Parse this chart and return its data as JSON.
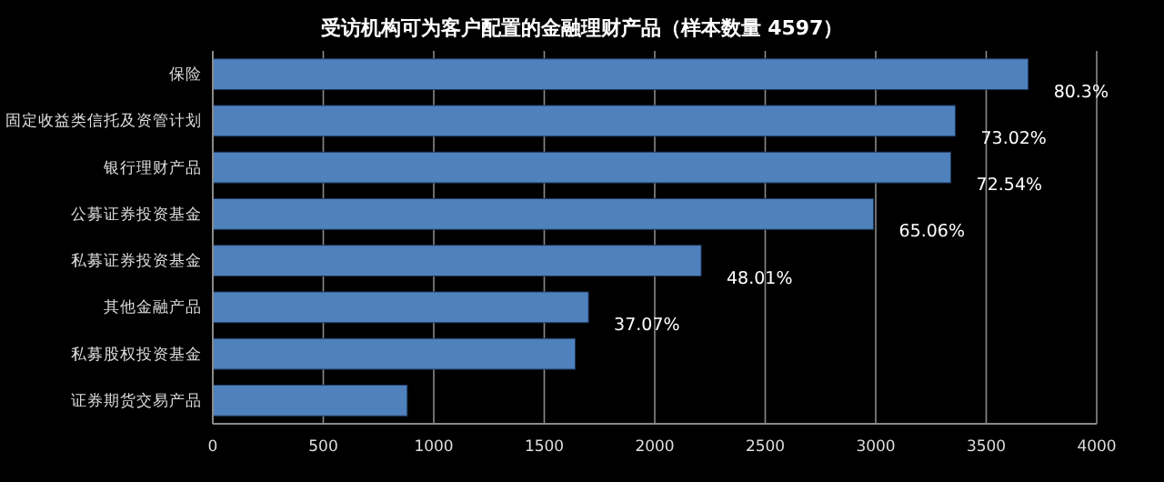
{
  "chart_data": {
    "type": "bar",
    "orientation": "horizontal",
    "title": "受访机构可为客户配置的金融理财产品（样本数量 4597）",
    "categories": [
      "保险",
      "固定收益类信托及资管计划",
      "银行理财产品",
      "公募证券投资基金",
      "私募证券投资基金",
      "其他金融产品",
      "私募股权投资基金",
      "证券期货交易产品"
    ],
    "values": [
      3690,
      3360,
      3340,
      2990,
      2210,
      1700,
      1640,
      880
    ],
    "annotations": [
      {
        "text": "80.3%",
        "x": 3690,
        "y": "保险"
      },
      {
        "text": "73.02%",
        "x": 3360,
        "y": "固定收益类信托及资管计划"
      },
      {
        "text": "72.54%",
        "x": 3340,
        "y": "银行理财产品"
      },
      {
        "text": "65.06%",
        "x": 2990,
        "y": "公募证券投资基金"
      },
      {
        "text": "48.01%",
        "x": 2210,
        "y": "私募证券投资基金"
      },
      {
        "text": "37.07%",
        "x": 1700,
        "y": "其他金融产品"
      }
    ],
    "color": "#4f81bd",
    "xlim": [
      0,
      4000
    ],
    "xticks": [
      0,
      500,
      1000,
      1500,
      2000,
      2500,
      3000,
      3500,
      4000
    ],
    "grid": "x"
  }
}
